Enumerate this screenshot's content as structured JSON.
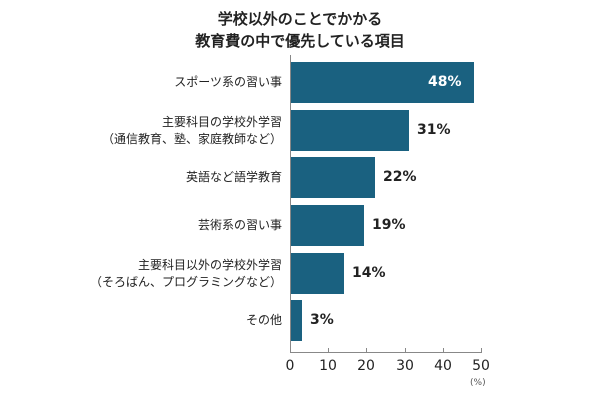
{
  "chart_data": {
    "type": "bar",
    "orientation": "horizontal",
    "title": "学校以外のことでかかる教育費の中で優先している項目",
    "title_lines": [
      "学校以外のことでかかる",
      "教育費の中で優先している項目"
    ],
    "categories": [
      "スポーツ系の習い事",
      "主要科目の学校外学習（通信教育、塾、家庭教師など）",
      "英語など語学教育",
      "芸術系の習い事",
      "主要科目以外の学校外学習（そろばん、プログラミングなど）",
      "その他"
    ],
    "category_lines": [
      [
        "スポーツ系の習い事"
      ],
      [
        "主要科目の学校外学習",
        "（通信教育、塾、家庭教師など）"
      ],
      [
        "英語など語学教育"
      ],
      [
        "芸術系の習い事"
      ],
      [
        "主要科目以外の学校外学習",
        "（そろばん、プログラミングなど）"
      ],
      [
        "その他"
      ]
    ],
    "values": [
      48,
      31,
      22,
      19,
      14,
      3
    ],
    "value_labels": [
      "48%",
      "31%",
      "22%",
      "19%",
      "14%",
      "3%"
    ],
    "xlabel": "",
    "ylabel": "",
    "unit_label": "(%)",
    "xlim": [
      0,
      50
    ],
    "xticks": [
      "0",
      "10",
      "20",
      "30",
      "40",
      "50"
    ],
    "grid": false,
    "legend": null,
    "bar_color": "#1a6180"
  }
}
